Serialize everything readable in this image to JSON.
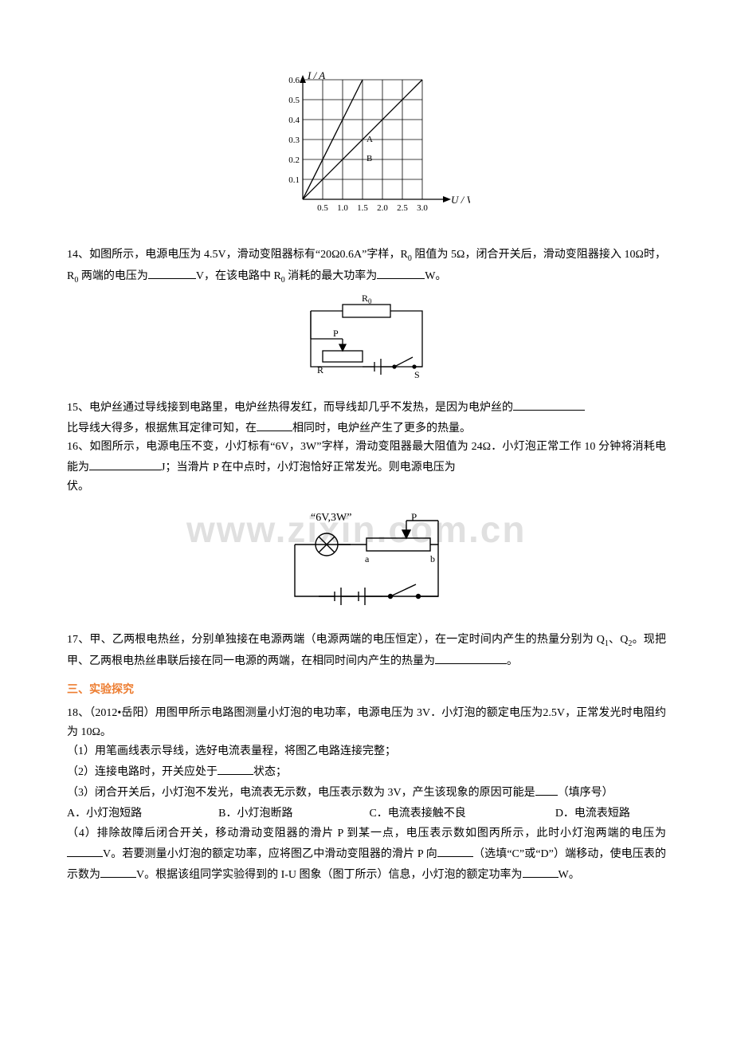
{
  "watermark": "www.zixin.com.cn",
  "chart1": {
    "type": "line",
    "ylabel": "I / A",
    "xlabel": "U / V",
    "x_ticks": [
      "0.5",
      "1.0",
      "1.5",
      "2.0",
      "2.5",
      "3.0"
    ],
    "y_ticks": [
      "0.1",
      "0.2",
      "0.3",
      "0.4",
      "0.5",
      "0.6"
    ],
    "annot": {
      "A": "A",
      "B": "B"
    },
    "line_color": "#000000",
    "grid_color": "#000000",
    "tick_fontsize": 10,
    "label_fontsize": 12
  },
  "q14": {
    "text_a": "14、如图所示，电源电压为 4.5V，滑动变阻器标有“20Ω0.6A”字样，R",
    "text_b": " 阻值为 5Ω，闭合开关后，滑动变阻器接入 10Ω时，R",
    "text_c": " 两端的电压为",
    "text_d": "V，在该电路中 R",
    "text_e": " 消耗的最大功率为",
    "text_f": "W。",
    "sub": "0",
    "circuit": {
      "R0": "R",
      "R0_sub": "0",
      "P": "P",
      "R": "R",
      "S": "S"
    }
  },
  "q15": {
    "text_a": "15、电炉丝通过导线接到电路里，电炉丝热得发红，而导线却几乎不发热，是因为电炉丝的",
    "text_b": "比导线大得多，根据焦耳定律可知，在",
    "text_c": "相同时，电炉丝产生了更多的热量。"
  },
  "q16": {
    "text_a": "16、如图所示，电源电压不变，小灯标有“6V，3W”字样，滑动变阻器最大阻值为 24Ω．小灯泡正常工作 10 分钟将消耗电能为",
    "text_b": "J；当滑片 P 在中点时，小灯泡恰好正常发光。则电源电压为",
    "text_c": "伏。",
    "circuit": {
      "label": "“6V,3W”",
      "P": "P",
      "a": "a",
      "b": "b"
    }
  },
  "q17": {
    "text_a": "17、甲、乙两根电热丝，分别单独接在电源两端（电源两端的电压恒定），在一定时间内产生的热量分别为 Q",
    "sub1": "1",
    "text_b": "、Q",
    "sub2": "2",
    "text_c": "。现把甲、乙两根电热丝串联后接在同一电源的两端，在相同时间内产生的热量为",
    "text_d": "。"
  },
  "section3": {
    "title": "三、实验探究",
    "color": "#ed7d31"
  },
  "q18": {
    "line1": "18、（2012•岳阳）用图甲所示电路图测量小灯泡的电功率，电源电压为 3V．小灯泡的额定电压为2.5V，正常发光时电阻约为 10Ω。",
    "p1": "（1）用笔画线表示导线，选好电流表量程，将图乙电路连接完整；",
    "p2a": "（2）连接电路时，开关应处于",
    "p2b": "状态；",
    "p3a": "（3）闭合开关后，小灯泡不发光，电流表无示数，电压表示数为 3V，产生该现象的原因可能是",
    "p3b": "（填序号）",
    "choices": {
      "A": "A．小灯泡短路",
      "B": "B．小灯泡断路",
      "C": "C．电流表接触不良",
      "D": "D．电流表短路",
      "gapAB": 96,
      "gapBC": 96,
      "gapCD": 112
    },
    "p4a": "（4）排除故障后闭合开关，移动滑动变阻器的滑片 P 到某一点，电压表示数如图丙所示，此时小灯泡两端的电压为",
    "p4b": "V。若要测量小灯泡的额定功率，应将图乙中滑动变阻器的滑片 P 向",
    "p4c": "（选填“C”或“D”）端移动，使电压表的示数为",
    "p4d": "V。根据该组同学实验得到的 I-U 图象（图丁所示）信息，小灯泡的额定功率为",
    "p4e": "W。"
  }
}
